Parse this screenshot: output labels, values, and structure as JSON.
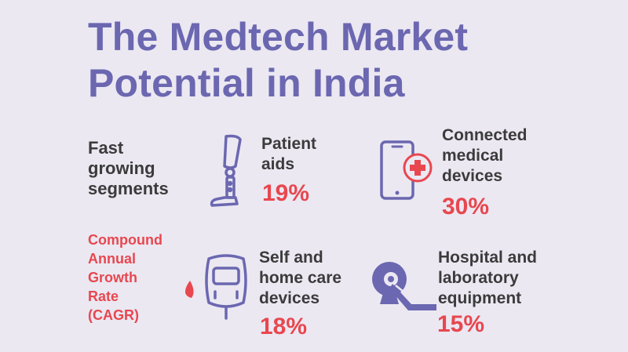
{
  "title": {
    "line1": "The Medtech Market",
    "line2": "Potential in India"
  },
  "fast_growing": {
    "line1": "Fast",
    "line2": "growing",
    "line3": "segments"
  },
  "cagr": {
    "line1": "Compound",
    "line2": "Annual",
    "line3": "Growth",
    "line4": "Rate",
    "line5": "(CAGR)"
  },
  "segments": [
    {
      "label_lines": [
        "Patient",
        "aids"
      ],
      "percent": "19%",
      "icon": "prosthetic-leg-icon"
    },
    {
      "label_lines": [
        "Connected",
        "medical",
        "devices"
      ],
      "percent": "30%",
      "icon": "smartphone-medical-cross-icon"
    },
    {
      "label_lines": [
        "Self and",
        "home care",
        "devices"
      ],
      "percent": "18%",
      "icon": "glucose-meter-icon"
    },
    {
      "label_lines": [
        "Hospital and",
        "laboratory",
        "equipment"
      ],
      "percent": "15%",
      "icon": "ct-scanner-icon"
    }
  ],
  "colors": {
    "background": "#ebe8f2",
    "title": "#6b67b0",
    "accent": "#e8474f",
    "text": "#3b3b3b"
  }
}
